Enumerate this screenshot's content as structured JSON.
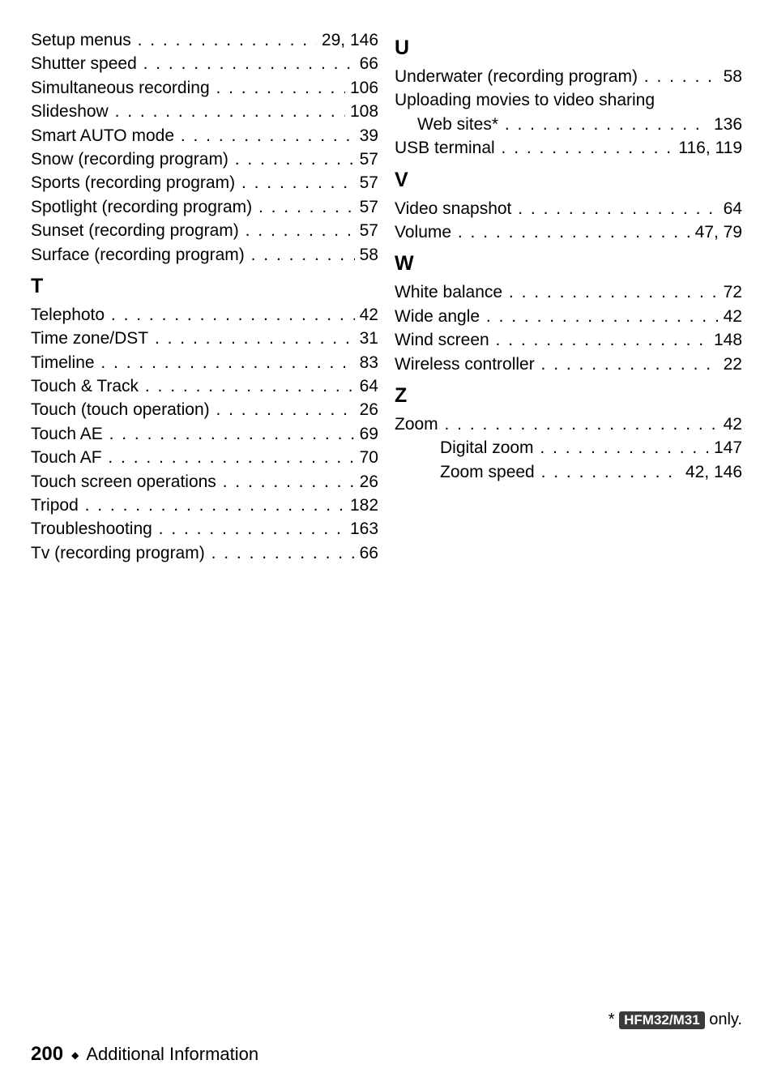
{
  "left_col": {
    "entries_pre": [
      {
        "label": "Setup menus",
        "page": "29, 146"
      },
      {
        "label": "Shutter speed",
        "page": "66"
      },
      {
        "label": "Simultaneous recording",
        "page": "106"
      },
      {
        "label": "Slideshow",
        "page": "108"
      },
      {
        "label": "Smart AUTO mode",
        "page": "39"
      },
      {
        "label": "Snow (recording program)",
        "page": "57"
      },
      {
        "label": "Sports (recording program)",
        "page": "57"
      },
      {
        "label": "Spotlight (recording program)",
        "page": "57"
      },
      {
        "label": "Sunset (recording program)",
        "page": "57"
      },
      {
        "label": "Surface (recording program)",
        "page": "58"
      }
    ],
    "letter_t": "T",
    "entries_t": [
      {
        "label": "Telephoto",
        "page": "42"
      },
      {
        "label": "Time zone/DST",
        "page": "31"
      },
      {
        "label": "Timeline",
        "page": "83"
      },
      {
        "label": "Touch & Track",
        "page": "64"
      },
      {
        "label": "Touch (touch operation)",
        "page": "26"
      },
      {
        "label": "Touch AE",
        "page": "69"
      },
      {
        "label": "Touch AF",
        "page": "70"
      },
      {
        "label": "Touch screen operations",
        "page": "26"
      },
      {
        "label": "Tripod",
        "page": "182"
      },
      {
        "label": "Troubleshooting",
        "page": "163"
      },
      {
        "label": "Tv (recording program)",
        "page": "66"
      }
    ]
  },
  "right_col": {
    "letter_u": "U",
    "entries_u": [
      {
        "label": "Underwater (recording program)",
        "page": "58"
      }
    ],
    "upload_line1": "Uploading movies to video sharing",
    "upload_line2": {
      "label": "Web sites*",
      "page": "136",
      "indent": true
    },
    "entries_u2": [
      {
        "label": "USB terminal",
        "page": "116, 119"
      }
    ],
    "letter_v": "V",
    "entries_v": [
      {
        "label": "Video snapshot",
        "page": "64"
      },
      {
        "label": "Volume",
        "page": "47, 79"
      }
    ],
    "letter_w": "W",
    "entries_w": [
      {
        "label": "White balance",
        "page": "72"
      },
      {
        "label": "Wide angle",
        "page": "42"
      },
      {
        "label": "Wind screen",
        "page": "148"
      },
      {
        "label": "Wireless controller",
        "page": "22"
      }
    ],
    "letter_z": "Z",
    "entries_z": [
      {
        "label": "Zoom",
        "page": "42"
      },
      {
        "label": "Digital zoom",
        "page": "147",
        "indent": true
      },
      {
        "label": "Zoom speed",
        "page": "42, 146",
        "indent": true
      }
    ]
  },
  "footnote": {
    "prefix": "* ",
    "badge": "HFM32/M31",
    "suffix": " only."
  },
  "footer": {
    "page_num": "200",
    "section_title": "Additional Information"
  },
  "style": {
    "text_color": "#000000",
    "bg_color": "#ffffff",
    "badge_bg": "#3a3a3a",
    "badge_fg": "#ffffff",
    "body_fontsize": 21,
    "letter_fontsize": 25,
    "dots_char": ". . . . . . . . . . . . . . . . . . . . . . . . . . . . . . . . . . . . . . . ."
  }
}
